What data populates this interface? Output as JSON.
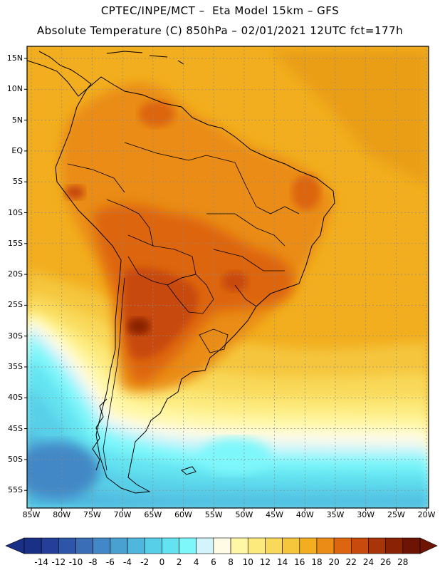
{
  "header": {
    "title_line1": "CPTEC/INPE/MCT –  Eta Model 15km – GFS",
    "title_line2": "Absolute Temperature (C) 850hPa – 02/01/2021 12UTC fct=177h"
  },
  "axes": {
    "lat_labels": [
      "15N",
      "10N",
      "5N",
      "EQ",
      "5S",
      "10S",
      "15S",
      "20S",
      "25S",
      "30S",
      "35S",
      "40S",
      "45S",
      "50S",
      "55S"
    ],
    "lon_labels": [
      "85W",
      "80W",
      "75W",
      "70W",
      "65W",
      "60W",
      "55W",
      "50W",
      "45W",
      "40W",
      "35W",
      "30W",
      "25W",
      "20W"
    ]
  },
  "colorbar": {
    "labels": [
      "-14",
      "-12",
      "-10",
      "-8",
      "-6",
      "-4",
      "-2",
      "0",
      "2",
      "4",
      "6",
      "8",
      "10",
      "12",
      "14",
      "16",
      "18",
      "20",
      "22",
      "24",
      "26",
      "28"
    ],
    "colors": [
      "#1a2f86",
      "#253f98",
      "#2e56a8",
      "#3a6fb8",
      "#4288c6",
      "#49a1d2",
      "#4fb7de",
      "#58cfe8",
      "#63e3f0",
      "#7ef7fb",
      "#d3f4fb",
      "#fffbe5",
      "#fff7a6",
      "#fdea7c",
      "#f9d95a",
      "#f5c63c",
      "#f2ae1e",
      "#ea8c15",
      "#dd6510",
      "#c84a0c",
      "#a8340a",
      "#8a2306",
      "#6d1404"
    ],
    "low_end_color": "#1a2f86",
    "high_end_color": "#6d1404"
  },
  "colors": {
    "warm_orange": "#f2ae1e",
    "hot_brown": "#c84a0c",
    "cold_cyan": "#58cfe8",
    "cold_blue": "#4288c6",
    "coast_line": "#000000",
    "grid_line": "#8a8a8a"
  }
}
